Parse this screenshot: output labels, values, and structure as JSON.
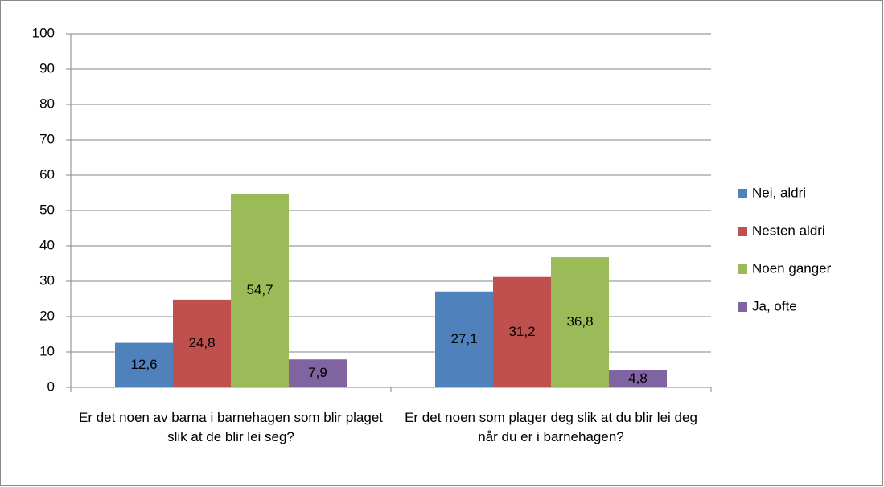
{
  "chart_data": {
    "type": "bar",
    "categories": [
      "Er det noen av barna i barnehagen som blir plaget slik at de blir lei seg?",
      "Er det noen som plager deg slik at du blir lei deg når du er i barnehagen?"
    ],
    "series": [
      {
        "name": "Nei, aldri",
        "color": "#4f81bd",
        "values": [
          12.6,
          27.1
        ],
        "value_labels": [
          "12,6",
          "27,1"
        ]
      },
      {
        "name": "Nesten aldri",
        "color": "#c0504d",
        "values": [
          24.8,
          31.2
        ],
        "value_labels": [
          "24,8",
          "31,2"
        ]
      },
      {
        "name": "Noen ganger",
        "color": "#9bbb59",
        "values": [
          54.7,
          36.8
        ],
        "value_labels": [
          "54,7",
          "36,8"
        ]
      },
      {
        "name": "Ja, ofte",
        "color": "#8064a2",
        "values": [
          7.9,
          4.8
        ],
        "value_labels": [
          "7,9",
          "4,8"
        ]
      }
    ],
    "ylim": [
      0,
      100
    ],
    "yticks": [
      0,
      10,
      20,
      30,
      40,
      50,
      60,
      70,
      80,
      90,
      100
    ],
    "grid": true,
    "legend": "right"
  }
}
